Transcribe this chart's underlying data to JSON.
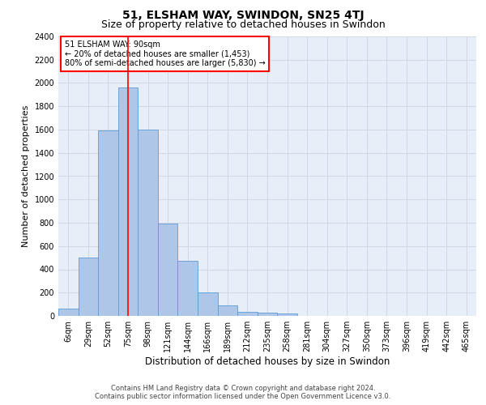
{
  "title": "51, ELSHAM WAY, SWINDON, SN25 4TJ",
  "subtitle": "Size of property relative to detached houses in Swindon",
  "xlabel": "Distribution of detached houses by size in Swindon",
  "ylabel": "Number of detached properties",
  "categories": [
    "6sqm",
    "29sqm",
    "52sqm",
    "75sqm",
    "98sqm",
    "121sqm",
    "144sqm",
    "166sqm",
    "189sqm",
    "212sqm",
    "235sqm",
    "258sqm",
    "281sqm",
    "304sqm",
    "327sqm",
    "350sqm",
    "373sqm",
    "396sqm",
    "419sqm",
    "442sqm",
    "465sqm"
  ],
  "bar_heights": [
    60,
    500,
    1590,
    1960,
    1600,
    790,
    470,
    200,
    90,
    35,
    30,
    20,
    0,
    0,
    0,
    0,
    0,
    0,
    0,
    0,
    0
  ],
  "bar_color": "#aec6e8",
  "bar_edge_color": "#5b9bd5",
  "grid_color": "#d0d8e8",
  "bg_color": "#e8eef8",
  "vline_color": "red",
  "vline_pos": 3.5,
  "annotation_title": "51 ELSHAM WAY: 90sqm",
  "annotation_line1": "← 20% of detached houses are smaller (1,453)",
  "annotation_line2": "80% of semi-detached houses are larger (5,830) →",
  "annotation_box_color": "white",
  "annotation_box_edge_color": "red",
  "ylim": [
    0,
    2400
  ],
  "yticks": [
    0,
    200,
    400,
    600,
    800,
    1000,
    1200,
    1400,
    1600,
    1800,
    2000,
    2200,
    2400
  ],
  "footer_line1": "Contains HM Land Registry data © Crown copyright and database right 2024.",
  "footer_line2": "Contains public sector information licensed under the Open Government Licence v3.0.",
  "title_fontsize": 10,
  "subtitle_fontsize": 9,
  "ylabel_fontsize": 8,
  "xlabel_fontsize": 8.5,
  "tick_fontsize": 7,
  "annotation_fontsize": 7,
  "footer_fontsize": 6
}
